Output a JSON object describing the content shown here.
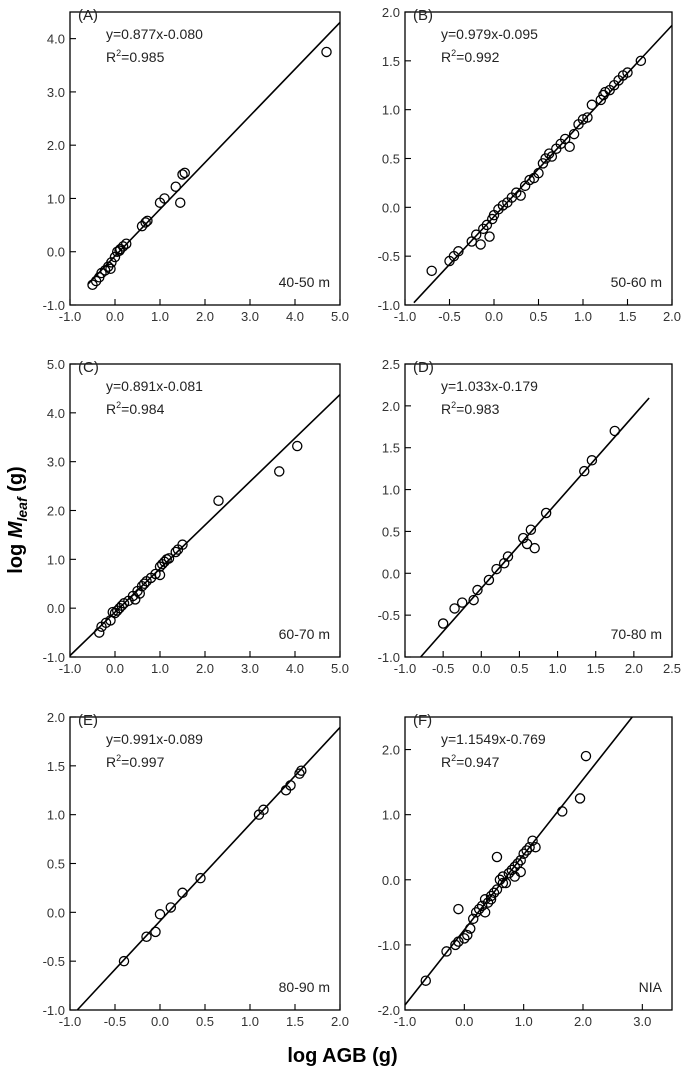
{
  "figure": {
    "xlabel": "log AGB (g)",
    "ylabel_prefix": "log ",
    "ylabel_var": "M",
    "ylabel_sub": "leaf",
    "ylabel_suffix": " (g)"
  },
  "chart_data": [
    {
      "type": "scatter",
      "panel": "(A)",
      "equation": "y=0.877x-0.080",
      "r2_prefix": "R",
      "r2_sup": "2",
      "r2_value": "=0.985",
      "range_label": "40-50 m",
      "xlim": [
        -1.0,
        5.0
      ],
      "ylim": [
        -1.0,
        4.5
      ],
      "xticks": [
        -1.0,
        0.0,
        1.0,
        2.0,
        3.0,
        4.0,
        5.0
      ],
      "xtick_labels": [
        "-1.0",
        "0.0",
        "1.0",
        "2.0",
        "3.0",
        "4.0",
        "5.0"
      ],
      "yticks": [
        -1.0,
        0.0,
        1.0,
        2.0,
        3.0,
        4.0
      ],
      "ytick_labels": [
        "-1.0",
        "0.0",
        "1.0",
        "2.0",
        "3.0",
        "4.0"
      ],
      "fit": {
        "slope": 0.877,
        "intercept": -0.08,
        "x_range": [
          -0.6,
          5.0
        ]
      },
      "points": [
        [
          -0.5,
          -0.62
        ],
        [
          -0.42,
          -0.55
        ],
        [
          -0.35,
          -0.48
        ],
        [
          -0.3,
          -0.4
        ],
        [
          -0.22,
          -0.35
        ],
        [
          -0.15,
          -0.28
        ],
        [
          -0.08,
          -0.2
        ],
        [
          0.0,
          -0.1
        ],
        [
          0.05,
          0.0
        ],
        [
          0.12,
          0.05
        ],
        [
          0.18,
          0.1
        ],
        [
          0.25,
          0.15
        ],
        [
          -0.1,
          -0.32
        ],
        [
          0.1,
          0.02
        ],
        [
          0.6,
          0.48
        ],
        [
          0.68,
          0.55
        ],
        [
          0.72,
          0.58
        ],
        [
          1.0,
          0.92
        ],
        [
          1.1,
          1.0
        ],
        [
          1.35,
          1.22
        ],
        [
          1.45,
          0.92
        ],
        [
          1.5,
          1.45
        ],
        [
          1.55,
          1.48
        ],
        [
          4.7,
          3.75
        ]
      ]
    },
    {
      "type": "scatter",
      "panel": "(B)",
      "equation": "y=0.979x-0.095",
      "r2_prefix": "R",
      "r2_sup": "2",
      "r2_value": "=0.992",
      "range_label": "50-60 m",
      "xlim": [
        -1.0,
        2.0
      ],
      "ylim": [
        -1.0,
        2.0
      ],
      "xticks": [
        -1.0,
        -0.5,
        0.0,
        0.5,
        1.0,
        1.5,
        2.0
      ],
      "xtick_labels": [
        "-1.0",
        "-0.5",
        "0.0",
        "0.5",
        "1.0",
        "1.5",
        "2.0"
      ],
      "yticks": [
        -1.0,
        -0.5,
        0.0,
        0.5,
        1.0,
        1.5,
        2.0
      ],
      "ytick_labels": [
        "-1.0",
        "-0.5",
        "0.0",
        "0.5",
        "1.0",
        "1.5",
        "2.0"
      ],
      "fit": {
        "slope": 0.979,
        "intercept": -0.095,
        "x_range": [
          -0.9,
          2.0
        ]
      },
      "points": [
        [
          -0.7,
          -0.65
        ],
        [
          -0.5,
          -0.55
        ],
        [
          -0.45,
          -0.5
        ],
        [
          -0.4,
          -0.45
        ],
        [
          -0.25,
          -0.35
        ],
        [
          -0.2,
          -0.28
        ],
        [
          -0.15,
          -0.38
        ],
        [
          -0.12,
          -0.22
        ],
        [
          -0.08,
          -0.18
        ],
        [
          -0.05,
          -0.3
        ],
        [
          -0.02,
          -0.12
        ],
        [
          0.0,
          -0.08
        ],
        [
          0.05,
          -0.02
        ],
        [
          0.1,
          0.02
        ],
        [
          0.15,
          0.05
        ],
        [
          0.2,
          0.1
        ],
        [
          0.25,
          0.15
        ],
        [
          0.3,
          0.12
        ],
        [
          0.35,
          0.22
        ],
        [
          0.4,
          0.28
        ],
        [
          0.45,
          0.3
        ],
        [
          0.5,
          0.35
        ],
        [
          0.55,
          0.45
        ],
        [
          0.58,
          0.5
        ],
        [
          0.62,
          0.55
        ],
        [
          0.65,
          0.52
        ],
        [
          0.7,
          0.6
        ],
        [
          0.75,
          0.65
        ],
        [
          0.8,
          0.7
        ],
        [
          0.85,
          0.62
        ],
        [
          0.9,
          0.75
        ],
        [
          0.95,
          0.85
        ],
        [
          1.0,
          0.9
        ],
        [
          1.05,
          0.92
        ],
        [
          1.1,
          1.05
        ],
        [
          1.2,
          1.1
        ],
        [
          1.25,
          1.18
        ],
        [
          1.3,
          1.2
        ],
        [
          1.35,
          1.25
        ],
        [
          1.4,
          1.3
        ],
        [
          1.45,
          1.35
        ],
        [
          1.5,
          1.38
        ],
        [
          1.65,
          1.5
        ],
        [
          1.23,
          1.15
        ]
      ]
    },
    {
      "type": "scatter",
      "panel": "(C)",
      "equation": "y=0.891x-0.081",
      "r2_prefix": "R",
      "r2_sup": "2",
      "r2_value": "=0.984",
      "range_label": "60-70 m",
      "xlim": [
        -1.0,
        5.0
      ],
      "ylim": [
        -1.0,
        5.0
      ],
      "xticks": [
        -1.0,
        0.0,
        1.0,
        2.0,
        3.0,
        4.0,
        5.0
      ],
      "xtick_labels": [
        "-1.0",
        "0.0",
        "1.0",
        "2.0",
        "3.0",
        "4.0",
        "5.0"
      ],
      "yticks": [
        -1.0,
        0.0,
        1.0,
        2.0,
        3.0,
        4.0,
        5.0
      ],
      "ytick_labels": [
        "-1.0",
        "0.0",
        "1.0",
        "2.0",
        "3.0",
        "4.0",
        "5.0"
      ],
      "fit": {
        "slope": 0.891,
        "intercept": -0.081,
        "x_range": [
          -1.0,
          5.0
        ]
      },
      "points": [
        [
          -0.35,
          -0.5
        ],
        [
          -0.3,
          -0.38
        ],
        [
          -0.2,
          -0.3
        ],
        [
          -0.1,
          -0.25
        ],
        [
          0.0,
          -0.1
        ],
        [
          0.05,
          -0.05
        ],
        [
          0.1,
          0.0
        ],
        [
          0.15,
          0.05
        ],
        [
          0.2,
          0.1
        ],
        [
          0.3,
          0.15
        ],
        [
          0.4,
          0.25
        ],
        [
          0.5,
          0.35
        ],
        [
          0.55,
          0.3
        ],
        [
          0.6,
          0.45
        ],
        [
          0.65,
          0.5
        ],
        [
          0.7,
          0.55
        ],
        [
          0.8,
          0.62
        ],
        [
          0.9,
          0.7
        ],
        [
          1.0,
          0.85
        ],
        [
          1.05,
          0.9
        ],
        [
          1.1,
          0.95
        ],
        [
          1.15,
          1.0
        ],
        [
          1.2,
          1.02
        ],
        [
          1.35,
          1.15
        ],
        [
          1.4,
          1.2
        ],
        [
          1.5,
          1.3
        ],
        [
          1.0,
          0.68
        ],
        [
          0.45,
          0.18
        ],
        [
          -0.05,
          -0.08
        ],
        [
          2.3,
          2.2
        ],
        [
          3.65,
          2.8
        ],
        [
          4.05,
          3.32
        ]
      ]
    },
    {
      "type": "scatter",
      "panel": "(D)",
      "equation": "y=1.033x-0.179",
      "r2_prefix": "R",
      "r2_sup": "2",
      "r2_value": "=0.983",
      "range_label": "70-80 m",
      "xlim": [
        -1.0,
        2.5
      ],
      "ylim": [
        -1.0,
        2.5
      ],
      "xticks": [
        -1.0,
        -0.5,
        0.0,
        0.5,
        1.0,
        1.5,
        2.0,
        2.5
      ],
      "xtick_labels": [
        "-1.0",
        "-0.5",
        "0.0",
        "0.5",
        "1.0",
        "1.5",
        "2.0",
        "2.5"
      ],
      "yticks": [
        -1.0,
        -0.5,
        0.0,
        0.5,
        1.0,
        1.5,
        2.0,
        2.5
      ],
      "ytick_labels": [
        "-1.0",
        "-0.5",
        "0.0",
        "0.5",
        "1.0",
        "1.5",
        "2.0",
        "2.5"
      ],
      "fit": {
        "slope": 1.033,
        "intercept": -0.179,
        "x_range": [
          -0.8,
          2.2
        ]
      },
      "points": [
        [
          -0.5,
          -0.6
        ],
        [
          -0.35,
          -0.42
        ],
        [
          -0.25,
          -0.35
        ],
        [
          -0.1,
          -0.32
        ],
        [
          -0.05,
          -0.2
        ],
        [
          0.1,
          -0.08
        ],
        [
          0.2,
          0.05
        ],
        [
          0.3,
          0.12
        ],
        [
          0.35,
          0.2
        ],
        [
          0.55,
          0.42
        ],
        [
          0.6,
          0.35
        ],
        [
          0.65,
          0.52
        ],
        [
          0.7,
          0.3
        ],
        [
          0.85,
          0.72
        ],
        [
          1.35,
          1.22
        ],
        [
          1.45,
          1.35
        ],
        [
          1.75,
          1.7
        ]
      ]
    },
    {
      "type": "scatter",
      "panel": "(E)",
      "equation": "y=0.991x-0.089",
      "r2_prefix": "R",
      "r2_sup": "2",
      "r2_value": "=0.997",
      "range_label": "80-90 m",
      "xlim": [
        -1.0,
        2.0
      ],
      "ylim": [
        -1.0,
        2.0
      ],
      "xticks": [
        -1.0,
        -0.5,
        0.0,
        0.5,
        1.0,
        1.5,
        2.0
      ],
      "xtick_labels": [
        "-1.0",
        "-0.5",
        "0.0",
        "0.5",
        "1.0",
        "1.5",
        "2.0"
      ],
      "yticks": [
        -1.0,
        -0.5,
        0.0,
        0.5,
        1.0,
        1.5,
        2.0
      ],
      "ytick_labels": [
        "-1.0",
        "-0.5",
        "0.0",
        "0.5",
        "1.0",
        "1.5",
        "2.0"
      ],
      "fit": {
        "slope": 0.991,
        "intercept": -0.089,
        "x_range": [
          -0.92,
          2.0
        ]
      },
      "points": [
        [
          -0.4,
          -0.5
        ],
        [
          -0.15,
          -0.25
        ],
        [
          -0.05,
          -0.2
        ],
        [
          0.0,
          -0.02
        ],
        [
          0.12,
          0.05
        ],
        [
          0.25,
          0.2
        ],
        [
          0.45,
          0.35
        ],
        [
          1.1,
          1.0
        ],
        [
          1.15,
          1.05
        ],
        [
          1.4,
          1.25
        ],
        [
          1.45,
          1.3
        ],
        [
          1.55,
          1.42
        ],
        [
          1.57,
          1.45
        ]
      ]
    },
    {
      "type": "scatter",
      "panel": "(F)",
      "equation": "y=1.1549x-0.769",
      "r2_prefix": "R",
      "r2_sup": "2",
      "r2_value": "=0.947",
      "range_label": "NIA",
      "xlim": [
        -1.0,
        3.5
      ],
      "ylim": [
        -2.0,
        2.5
      ],
      "xticks": [
        -1.0,
        0.0,
        1.0,
        2.0,
        3.0
      ],
      "xtick_labels": [
        "-1.0",
        "0.0",
        "1.0",
        "2.0",
        "3.0"
      ],
      "yticks": [
        -2.0,
        -1.0,
        0.0,
        1.0,
        2.0
      ],
      "ytick_labels": [
        "-2.0",
        "-1.0",
        "0.0",
        "1.0",
        "2.0"
      ],
      "fit": {
        "slope": 1.1549,
        "intercept": -0.769,
        "x_range": [
          -1.0,
          2.83
        ]
      },
      "points": [
        [
          -0.65,
          -1.55
        ],
        [
          -0.3,
          -1.1
        ],
        [
          -0.15,
          -1.0
        ],
        [
          -0.1,
          -0.95
        ],
        [
          0.0,
          -0.9
        ],
        [
          0.05,
          -0.85
        ],
        [
          0.1,
          -0.75
        ],
        [
          0.15,
          -0.6
        ],
        [
          0.2,
          -0.5
        ],
        [
          0.25,
          -0.45
        ],
        [
          0.3,
          -0.4
        ],
        [
          0.35,
          -0.3
        ],
        [
          0.4,
          -0.35
        ],
        [
          0.45,
          -0.25
        ],
        [
          0.5,
          -0.2
        ],
        [
          0.55,
          -0.15
        ],
        [
          0.6,
          0.0
        ],
        [
          0.65,
          0.05
        ],
        [
          0.7,
          -0.05
        ],
        [
          0.75,
          0.1
        ],
        [
          0.8,
          0.15
        ],
        [
          0.85,
          0.2
        ],
        [
          0.9,
          0.25
        ],
        [
          0.95,
          0.3
        ],
        [
          1.0,
          0.4
        ],
        [
          1.05,
          0.45
        ],
        [
          1.1,
          0.5
        ],
        [
          1.15,
          0.6
        ],
        [
          1.2,
          0.5
        ],
        [
          0.55,
          0.35
        ],
        [
          -0.1,
          -0.45
        ],
        [
          0.35,
          -0.5
        ],
        [
          0.95,
          0.12
        ],
        [
          1.65,
          1.05
        ],
        [
          1.95,
          1.25
        ],
        [
          2.05,
          1.9
        ],
        [
          0.45,
          -0.3
        ],
        [
          0.65,
          -0.05
        ],
        [
          0.85,
          0.05
        ]
      ]
    }
  ]
}
